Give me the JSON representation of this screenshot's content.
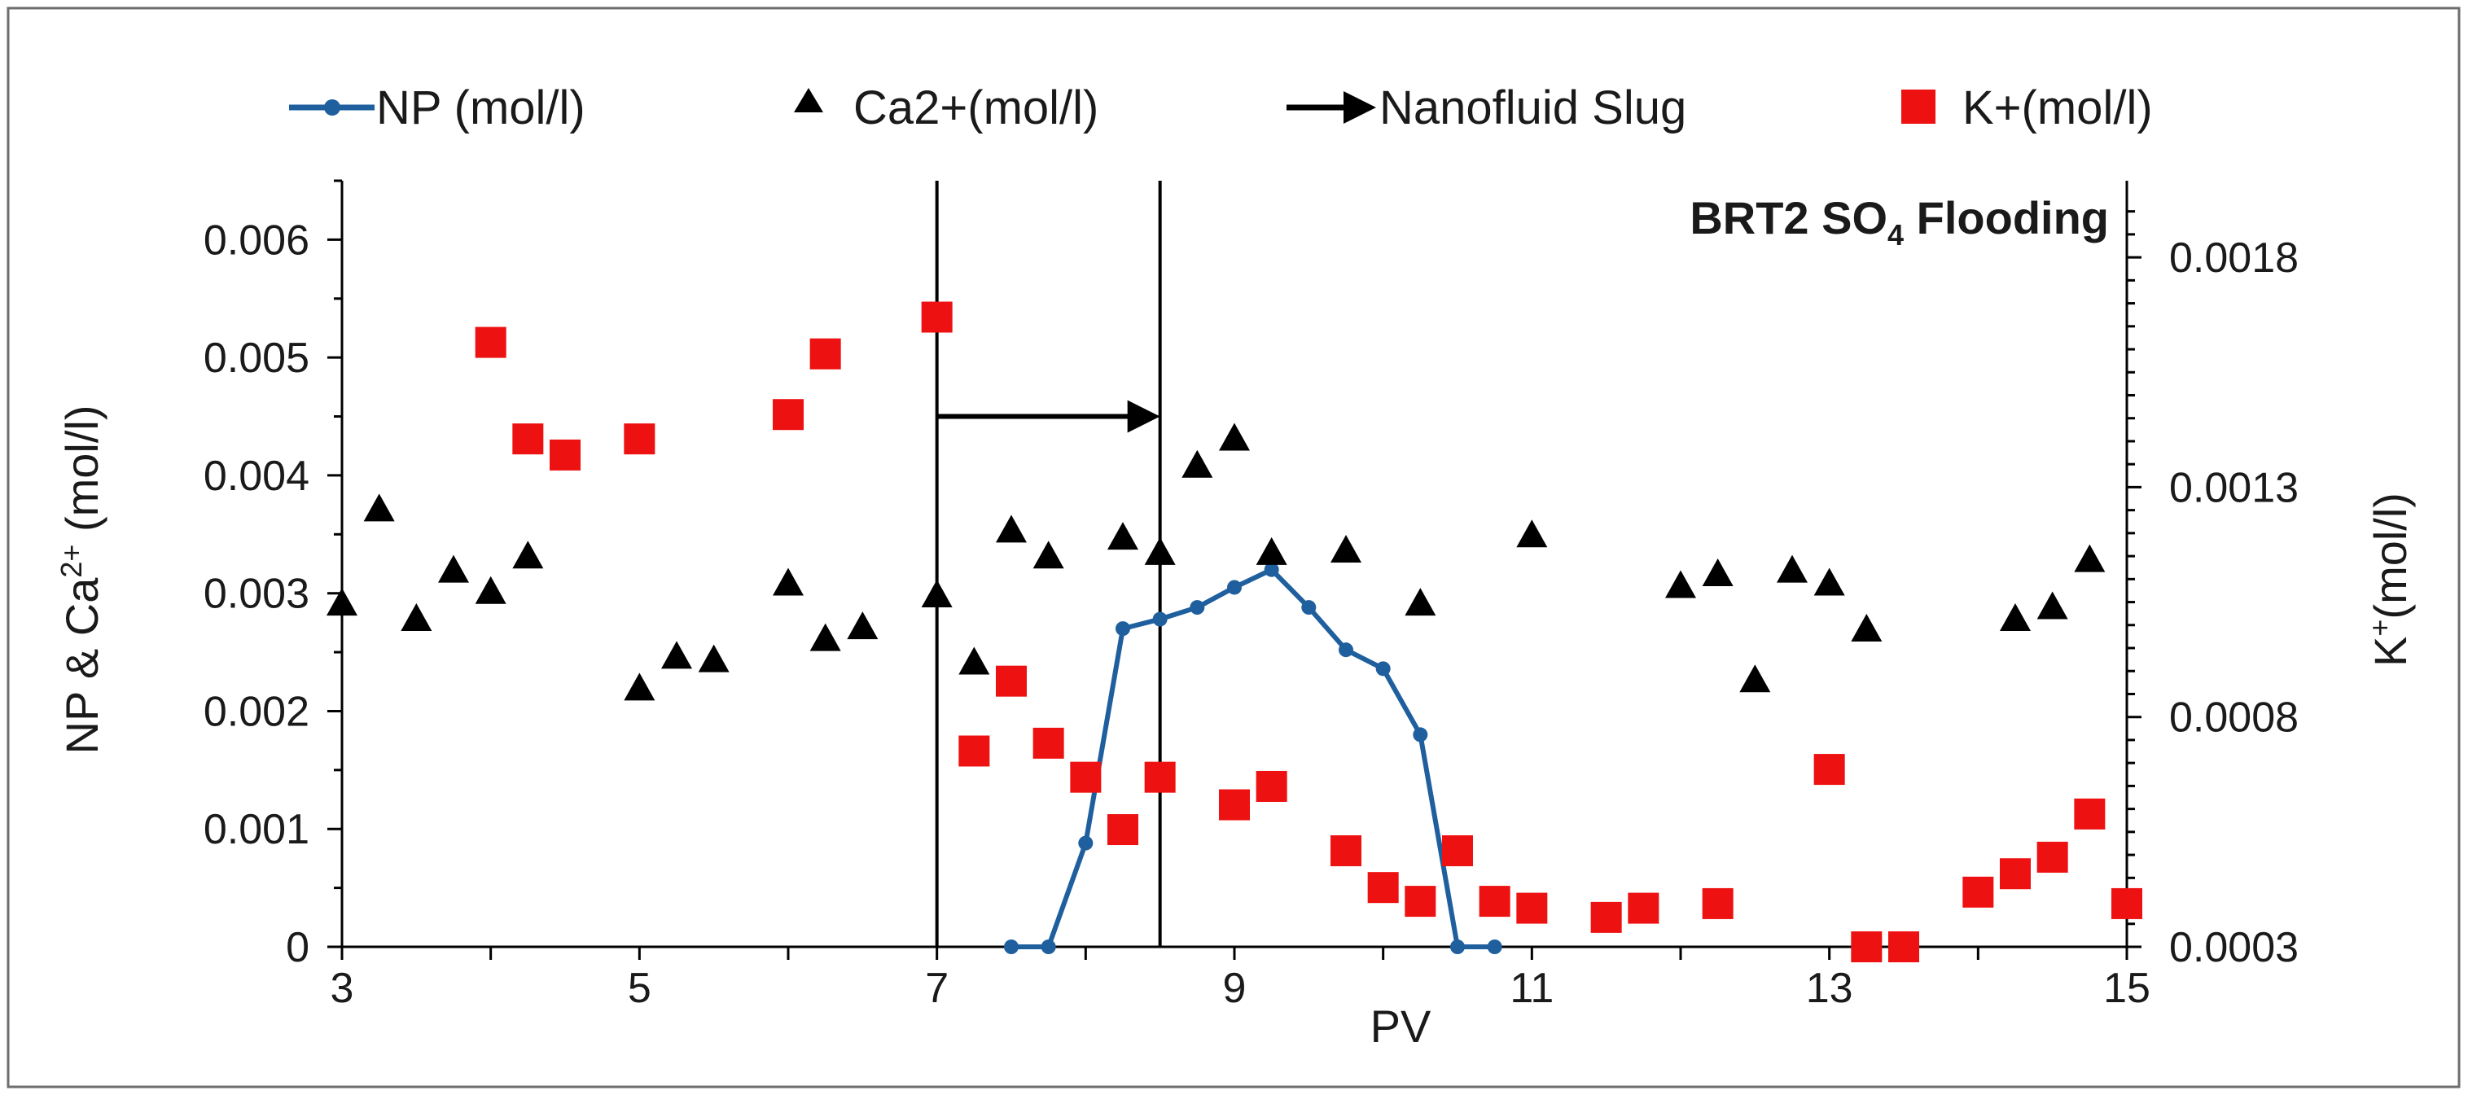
{
  "chart_data": {
    "type": "scatter",
    "annotation": {
      "prefix": "BRT2 SO",
      "sub": "4",
      "suffix": " Flooding"
    },
    "xlabel": "PV",
    "ylabel_left": {
      "a": "NP & Ca",
      "sup": "2+",
      "b": " (mol/l)"
    },
    "ylabel_right": {
      "a": "K",
      "sup": "+",
      "b": "(mol/l)"
    },
    "xlim": [
      3,
      15
    ],
    "ylim_left": [
      0,
      0.0065
    ],
    "ylim_right": [
      0.0003,
      0.0019667
    ],
    "x_ticks": [
      3,
      5,
      7,
      9,
      11,
      13,
      15
    ],
    "x_tick_labels": [
      "3",
      "5",
      "7",
      "9",
      "11",
      "13",
      "15"
    ],
    "y_left_ticks": [
      0,
      0.001,
      0.002,
      0.003,
      0.004,
      0.005,
      0.006
    ],
    "y_left_tick_labels": [
      "0",
      "0.001",
      "0.002",
      "0.003",
      "0.004",
      "0.005",
      "0.006"
    ],
    "y_right_ticks": [
      0.0003,
      0.0008,
      0.0013,
      0.0018
    ],
    "y_right_tick_labels": [
      "0.0003",
      "0.0008",
      "0.0013",
      "0.0018"
    ],
    "legend": [
      {
        "key": "np",
        "label": "NP (mol/l)"
      },
      {
        "key": "ca",
        "label": "Ca2+(mol/l)"
      },
      {
        "key": "slug",
        "label": "Nanofluid Slug"
      },
      {
        "key": "k",
        "label": "K+(mol/l)"
      }
    ],
    "colors": {
      "np": "#1f5f9e",
      "ca": "#000000",
      "k": "#ee1111",
      "slug": "#000000"
    },
    "slug": {
      "start": 7,
      "end": 8.5,
      "arrow_y": 0.0045
    },
    "series": [
      {
        "name": "NP (mol/l)",
        "key": "np",
        "axis": "left",
        "style": "line-markers",
        "x": [
          7.5,
          7.75,
          8.0,
          8.25,
          8.5,
          8.75,
          9.0,
          9.25,
          9.5,
          9.75,
          10.0,
          10.25,
          10.5,
          10.75
        ],
        "y": [
          0,
          0,
          0.00088,
          0.0027,
          0.00278,
          0.00288,
          0.00305,
          0.0032,
          0.00288,
          0.00252,
          0.00236,
          0.0018,
          0,
          0
        ]
      },
      {
        "name": "Ca2+(mol/l)",
        "key": "ca",
        "axis": "left",
        "style": "triangle",
        "x": [
          3,
          3.25,
          3.5,
          3.75,
          4.0,
          4.25,
          5.0,
          5.25,
          5.5,
          6.0,
          6.25,
          6.5,
          7.0,
          7.25,
          7.5,
          7.75,
          8.25,
          8.5,
          8.75,
          9.0,
          9.25,
          9.75,
          10.25,
          11.0,
          12.0,
          12.25,
          12.5,
          12.75,
          13.0,
          13.25,
          14.25,
          14.5,
          14.75
        ],
        "y": [
          0.0029,
          0.0037,
          0.00277,
          0.00318,
          0.003,
          0.0033,
          0.00218,
          0.00245,
          0.00242,
          0.00307,
          0.0026,
          0.0027,
          0.00297,
          0.0024,
          0.00352,
          0.0033,
          0.00346,
          0.00333,
          0.00407,
          0.0043,
          0.00333,
          0.00335,
          0.0029,
          0.00348,
          0.00305,
          0.00315,
          0.00225,
          0.00318,
          0.00307,
          0.00268,
          0.00277,
          0.00287,
          0.00327
        ]
      },
      {
        "name": "K+(mol/l)",
        "key": "k",
        "axis": "right",
        "style": "square",
        "x": [
          4.0,
          4.25,
          4.5,
          5.0,
          6.0,
          6.25,
          7.0,
          7.25,
          7.5,
          7.75,
          8.0,
          8.25,
          8.5,
          9.0,
          9.25,
          9.75,
          10.0,
          10.25,
          10.5,
          10.75,
          11.0,
          11.5,
          11.75,
          12.25,
          13.0,
          13.25,
          13.5,
          14.0,
          14.25,
          14.5,
          14.75,
          15.0
        ],
        "y": [
          0.001615,
          0.001405,
          0.00137,
          0.001405,
          0.001458,
          0.00159,
          0.00167,
          0.000726,
          0.000878,
          0.000743,
          0.000669,
          0.000555,
          0.000669,
          0.000609,
          0.000649,
          0.000509,
          0.000429,
          0.000399,
          0.000509,
          0.000399,
          0.000384,
          0.000364,
          0.000384,
          0.000394,
          0.000686,
          0.0003,
          0.0003,
          0.000419,
          0.000459,
          0.000495,
          0.000589,
          0.000394
        ]
      }
    ]
  }
}
